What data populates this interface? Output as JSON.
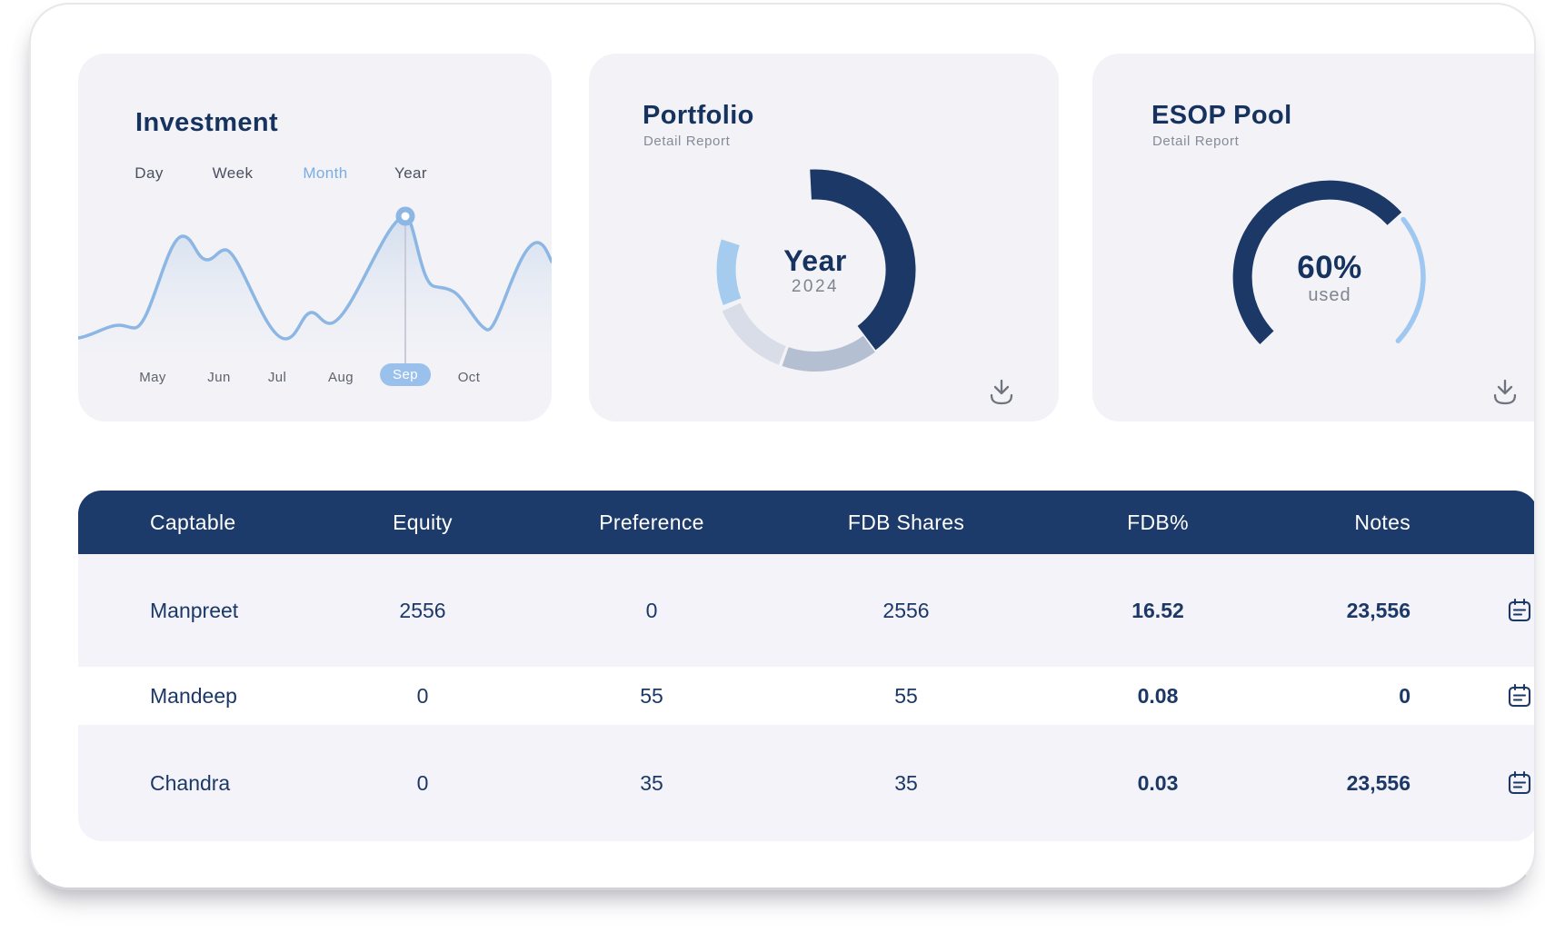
{
  "colors": {
    "navy": "#1b3866",
    "title_navy": "#16325f",
    "header_bar": "#1c3a6a",
    "card_bg": "#f2f2f7",
    "row_alt": "#f3f3f9",
    "chart_line": "#8cb6e3",
    "active_tab": "#79aee3",
    "selected_pill": "#9ac1eb",
    "donut_silver": "#b5bfd2",
    "donut_lightgray": "#d9dde7",
    "donut_blue": "#a5cbee",
    "gauge_track_blue": "#9fc8f0",
    "muted_text": "#878b99",
    "icon_gray": "#70747f"
  },
  "investment": {
    "title": "Investment",
    "tabs": [
      {
        "label": "Day",
        "active": false
      },
      {
        "label": "Week",
        "active": false
      },
      {
        "label": "Month",
        "active": true
      },
      {
        "label": "Year",
        "active": false
      }
    ],
    "months": [
      {
        "label": "May",
        "selected": false
      },
      {
        "label": "Jun",
        "selected": false
      },
      {
        "label": "Jul",
        "selected": false
      },
      {
        "label": "Aug",
        "selected": false
      },
      {
        "label": "Sep",
        "selected": true
      },
      {
        "label": "Oct",
        "selected": false
      }
    ],
    "chart_data": {
      "type": "area",
      "x": [
        "May",
        "Jun",
        "Jul",
        "Aug",
        "Sep",
        "Oct"
      ],
      "series": [
        {
          "name": "Investment",
          "values_relative_pct": [
            38,
            74,
            22,
            35,
            96,
            72
          ]
        }
      ],
      "selected_point": "Sep",
      "marker_on_peak": true,
      "y_axis_visible": false,
      "grid": false
    }
  },
  "portfolio": {
    "title": "Portfolio",
    "subtitle": "Detail Report",
    "center_label": "Year",
    "center_value": "2024",
    "chart_data": {
      "type": "pie",
      "donut": true,
      "segments": [
        {
          "name": "segment-navy",
          "color": "#1b3866",
          "start_deg": 357,
          "end_deg": 503,
          "share_pct": 40.6
        },
        {
          "name": "segment-silver",
          "color": "#b5bfd2",
          "start_deg": 144,
          "end_deg": 199,
          "share_pct": 15.3
        },
        {
          "name": "segment-lightgray",
          "color": "#d9dde7",
          "start_deg": 201,
          "end_deg": 246,
          "share_pct": 12.5
        },
        {
          "name": "segment-blue",
          "color": "#a5cbee",
          "start_deg": 249,
          "end_deg": 288,
          "share_pct": 10.8
        }
      ],
      "legend_position": "none"
    }
  },
  "esop": {
    "title": "ESOP Pool",
    "subtitle": "Detail Report",
    "center_value": "60%",
    "center_label": "used",
    "chart_data": {
      "type": "gauge",
      "value_pct": 60,
      "filled": {
        "name": "used-arc",
        "color": "#1b3866",
        "start_deg": 226,
        "end_deg": 408
      },
      "track": {
        "name": "remaining-arc",
        "color": "#9fc8f0",
        "start_deg": 52,
        "end_deg": 133
      }
    }
  },
  "table": {
    "headers": [
      "Captable",
      "Equity",
      "Preference",
      "FDB Shares",
      "FDB%",
      "Notes"
    ],
    "rows": [
      {
        "name": "Manpreet",
        "equity": "2556",
        "preference": "0",
        "fdb_shares": "2556",
        "fdb_pct": "16.52",
        "notes": "23,556"
      },
      {
        "name": "Mandeep",
        "equity": "0",
        "preference": "55",
        "fdb_shares": "55",
        "fdb_pct": "0.08",
        "notes": "0"
      },
      {
        "name": "Chandra",
        "equity": "0",
        "preference": "35",
        "fdb_shares": "35",
        "fdb_pct": "0.03",
        "notes": "23,556"
      }
    ]
  }
}
